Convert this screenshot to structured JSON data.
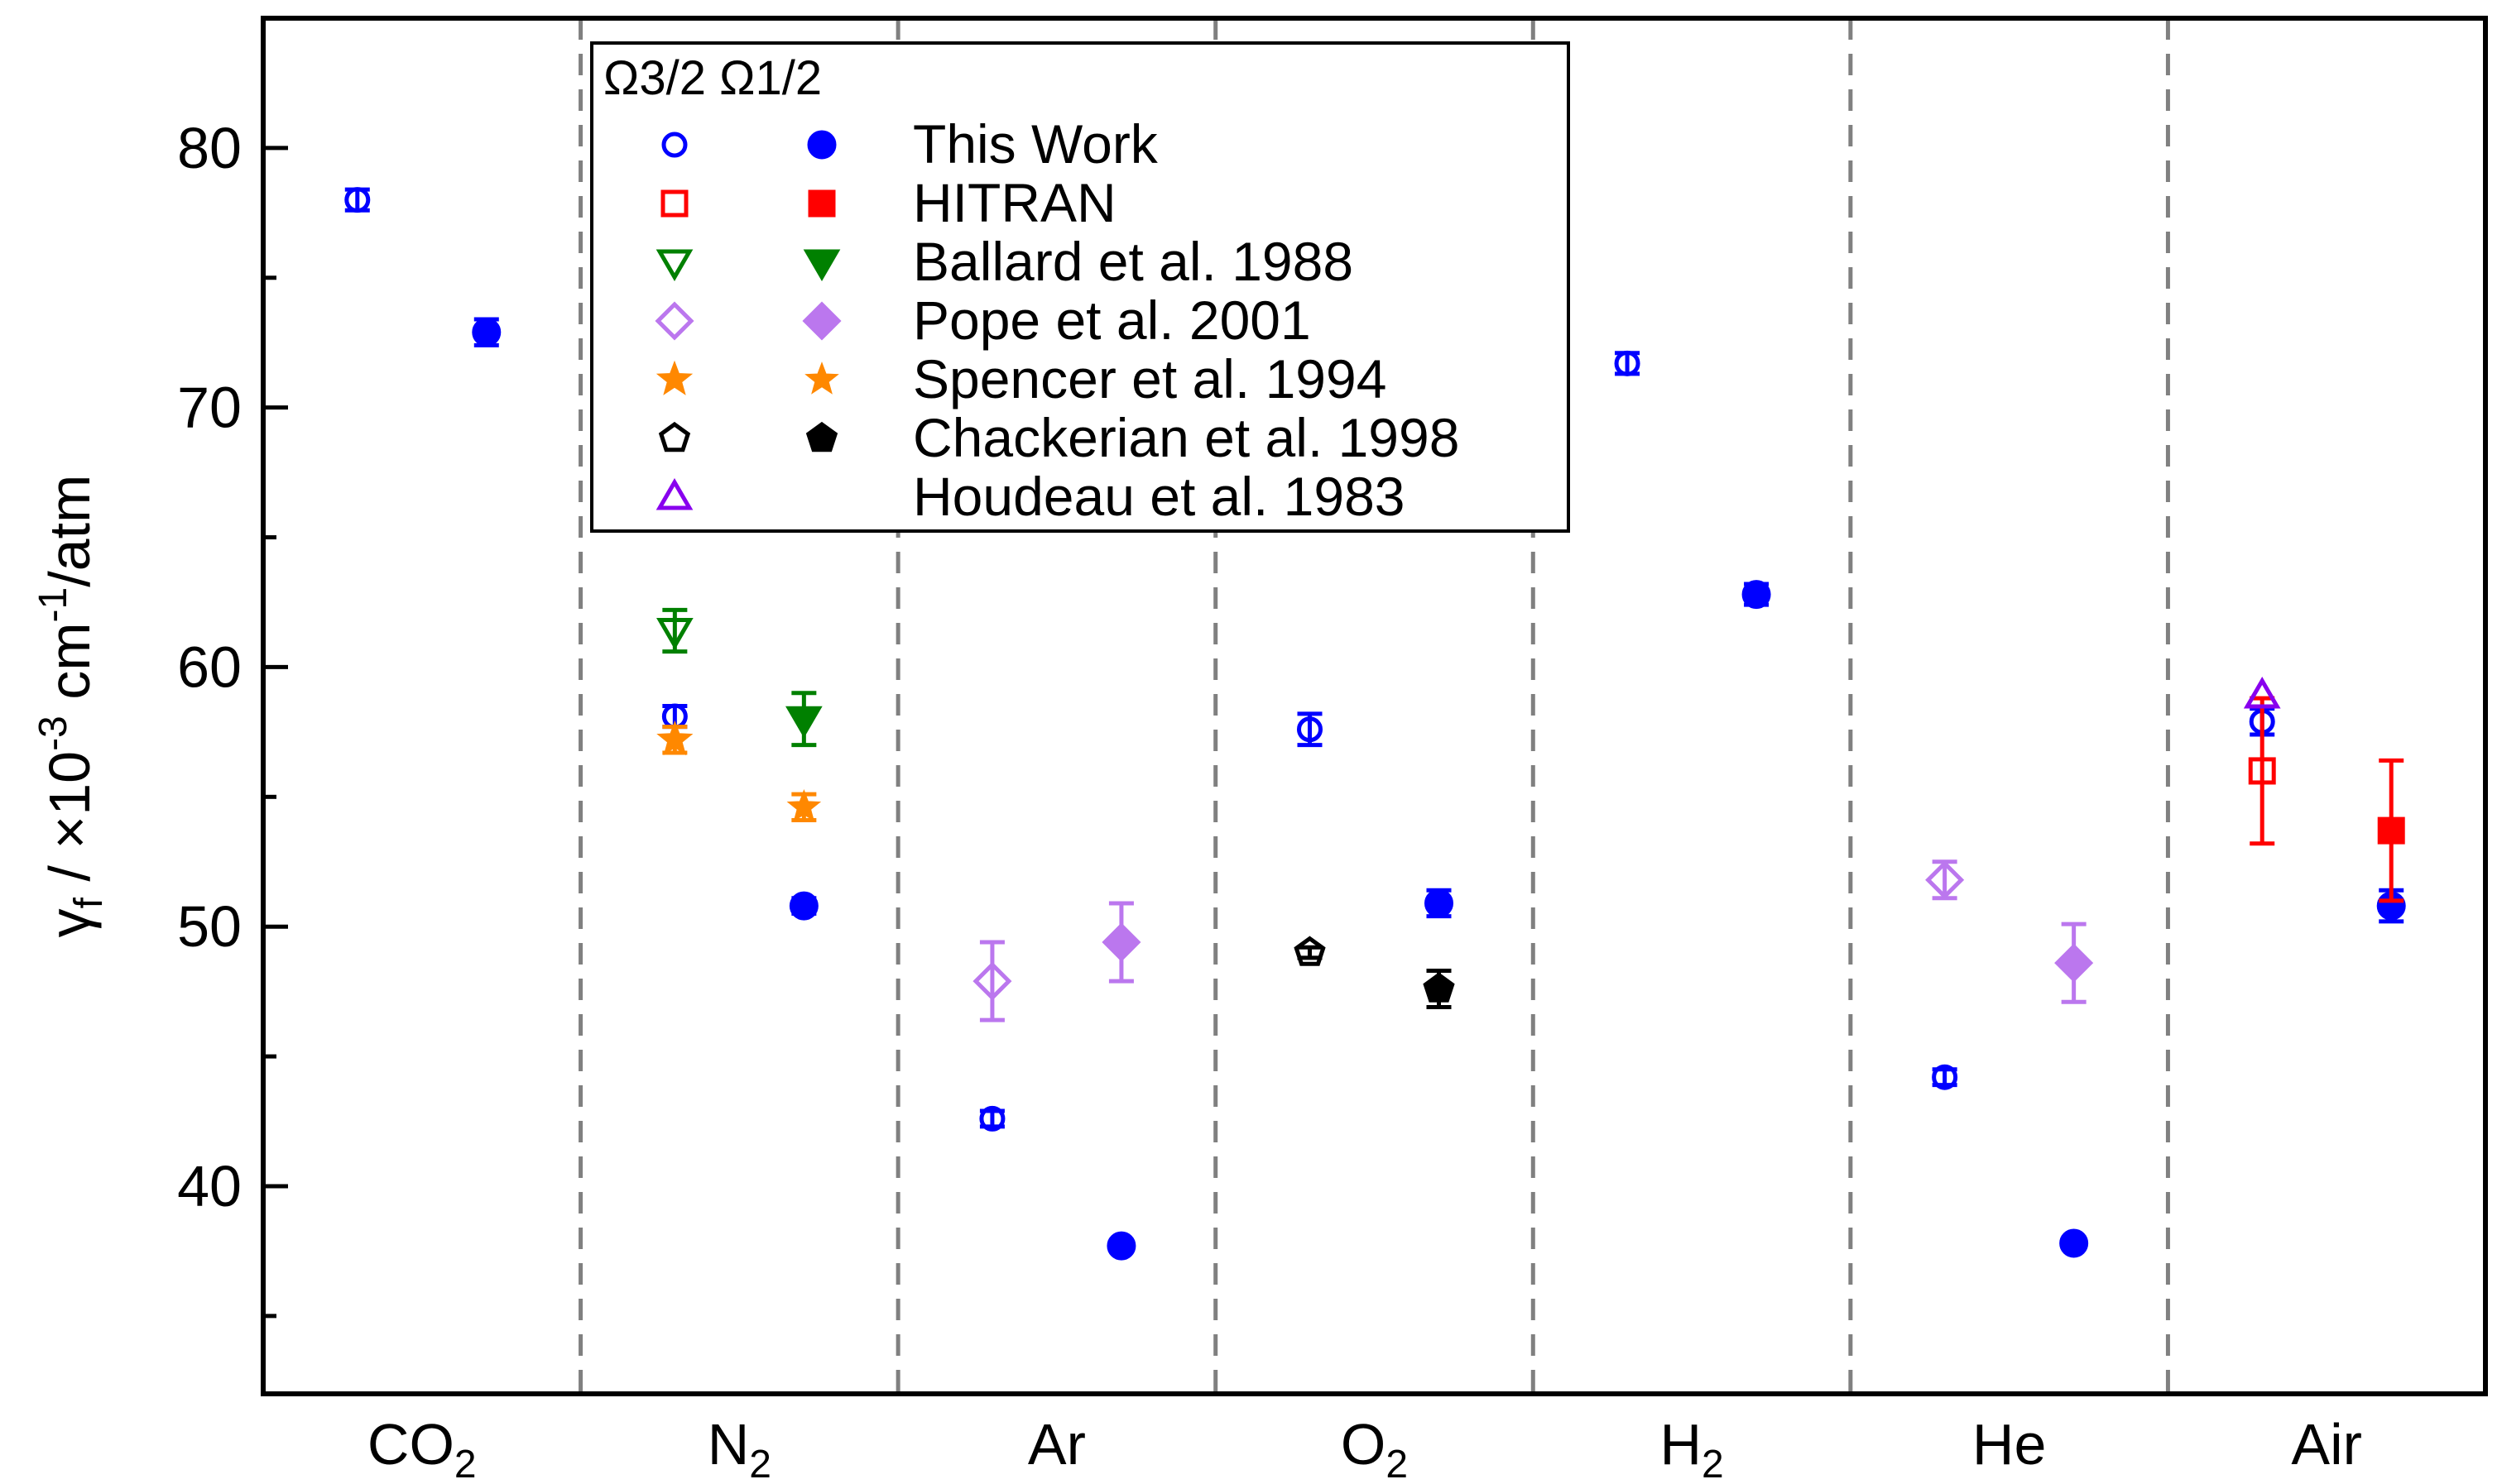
{
  "chart_data": {
    "type": "scatter",
    "title": "",
    "ylabel": {
      "sym": "γ",
      "sub": "f",
      "mid": " / ×10",
      "exp": "-3",
      "unit": " cm",
      "exp2": "-1",
      "tail": "/atm"
    },
    "xlabel": "",
    "ylim": [
      32,
      85
    ],
    "yticks": [
      40,
      50,
      60,
      70,
      80
    ],
    "categories": [
      {
        "base": "CO",
        "sub": "2"
      },
      {
        "base": "N",
        "sub": "2"
      },
      {
        "base": "Ar",
        "sub": ""
      },
      {
        "base": "O",
        "sub": "2"
      },
      {
        "base": "H",
        "sub": "2"
      },
      {
        "base": "He",
        "sub": ""
      },
      {
        "base": "Air",
        "sub": ""
      }
    ],
    "grid": false,
    "legend": {
      "placement": "top-center",
      "header": "Ω3/2 Ω1/2"
    },
    "series": [
      {
        "name": "This Work",
        "color": "#0000ff",
        "marker": "circle",
        "points": [
          {
            "cat": 0,
            "branch": "Ω3/2",
            "y": 78.0,
            "err": 0.4
          },
          {
            "cat": 0,
            "branch": "Ω1/2",
            "y": 72.9,
            "err": 0.5
          },
          {
            "cat": 1,
            "branch": "Ω3/2",
            "y": 58.1,
            "err": 0.4
          },
          {
            "cat": 1,
            "branch": "Ω1/2",
            "y": 50.8,
            "err": 0.3
          },
          {
            "cat": 2,
            "branch": "Ω3/2",
            "y": 42.6,
            "err": 0.3
          },
          {
            "cat": 2,
            "branch": "Ω1/2",
            "y": 37.7,
            "err": 0.2
          },
          {
            "cat": 3,
            "branch": "Ω3/2",
            "y": 57.6,
            "err": 0.6
          },
          {
            "cat": 3,
            "branch": "Ω1/2",
            "y": 50.9,
            "err": 0.5
          },
          {
            "cat": 4,
            "branch": "Ω3/2",
            "y": 71.7,
            "err": 0.4
          },
          {
            "cat": 4,
            "branch": "Ω1/2",
            "y": 62.8,
            "err": 0.4
          },
          {
            "cat": 5,
            "branch": "Ω3/2",
            "y": 44.2,
            "err": 0.3
          },
          {
            "cat": 5,
            "branch": "Ω1/2",
            "y": 37.8,
            "err": 0.2
          },
          {
            "cat": 6,
            "branch": "Ω3/2",
            "y": 57.9,
            "err": 0.5
          },
          {
            "cat": 6,
            "branch": "Ω1/2",
            "y": 50.8,
            "err": 0.6
          }
        ]
      },
      {
        "name": "HITRAN",
        "color": "#ff0000",
        "marker": "square",
        "points": [
          {
            "cat": 6,
            "branch": "Ω3/2",
            "y": 56.0,
            "err": 2.8
          },
          {
            "cat": 6,
            "branch": "Ω1/2",
            "y": 53.7,
            "err": 2.7
          }
        ]
      },
      {
        "name": "Ballard et al. 1988",
        "color": "#008000",
        "marker": "triangle-down",
        "points": [
          {
            "cat": 1,
            "branch": "Ω3/2",
            "y": 61.4,
            "err": 0.8
          },
          {
            "cat": 1,
            "branch": "Ω1/2",
            "y": 58.0,
            "err": 1.0
          }
        ]
      },
      {
        "name": "Pope et al. 2001",
        "color": "#bb77ee",
        "marker": "diamond",
        "points": [
          {
            "cat": 2,
            "branch": "Ω3/2",
            "y": 47.9,
            "err": 1.5
          },
          {
            "cat": 2,
            "branch": "Ω1/2",
            "y": 49.4,
            "err": 1.5
          },
          {
            "cat": 5,
            "branch": "Ω3/2",
            "y": 51.8,
            "err": 0.7
          },
          {
            "cat": 5,
            "branch": "Ω1/2",
            "y": 48.6,
            "err": 1.5
          }
        ]
      },
      {
        "name": "Spencer et al. 1994",
        "color": "#ff8800",
        "marker": "star",
        "points": [
          {
            "cat": 1,
            "branch": "Ω3/2",
            "y": 57.2,
            "err": 0.5
          },
          {
            "cat": 1,
            "branch": "Ω1/2",
            "y": 54.6,
            "err": 0.5
          }
        ]
      },
      {
        "name": "Chackerian et al. 1998",
        "color": "#000000",
        "marker": "pentagon",
        "points": [
          {
            "cat": 3,
            "branch": "Ω3/2",
            "y": 49.0,
            "err": 0.2
          },
          {
            "cat": 3,
            "branch": "Ω1/2",
            "y": 47.6,
            "err": 0.7
          }
        ]
      },
      {
        "name": "Houdeau et al. 1983",
        "color": "#8800ee",
        "marker": "triangle-up",
        "points": [
          {
            "cat": 6,
            "branch": "Ω3/2",
            "y": 58.9,
            "err": 0
          }
        ]
      }
    ]
  }
}
